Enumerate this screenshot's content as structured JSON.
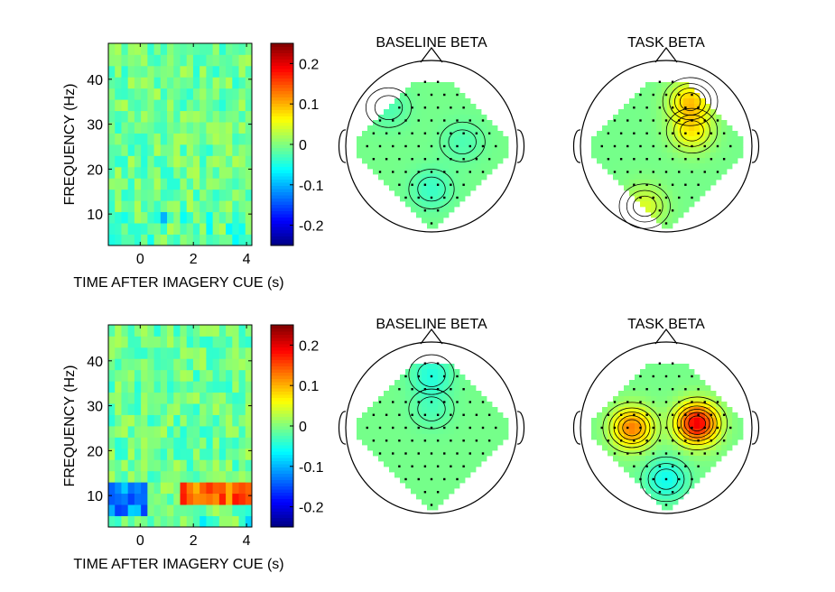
{
  "colors": {
    "background": "#ffffff",
    "axis": "#000000",
    "head_outline": "#000000"
  },
  "chart_data": [
    {
      "type": "heatmap",
      "panel": "top-spectrogram",
      "xlabel": "TIME AFTER IMAGERY CUE (s)",
      "ylabel": "FREQUENCY (Hz)",
      "xlim": [
        -1.2,
        4.2
      ],
      "ylim": [
        3,
        48
      ],
      "xticks": [
        0,
        2,
        4
      ],
      "yticks": [
        10,
        20,
        30,
        40
      ],
      "colorbar": {
        "colormap": "jet",
        "clim": [
          -0.25,
          0.25
        ],
        "ticks": [
          0.2,
          0.1,
          0,
          -0.1,
          -0.2
        ],
        "tick_labels": [
          "0.2",
          "0.1",
          "0",
          "-0.1",
          "-0.2"
        ]
      }
    },
    {
      "type": "heatmap",
      "panel": "top-baseline-topomap",
      "title": "BASELINE BETA",
      "colormap": "jet",
      "clim": [
        -0.25,
        0.25
      ],
      "peaks": [
        {
          "position": "midline-posterior",
          "value": -0.03
        },
        {
          "position": "right-central",
          "value": -0.02
        },
        {
          "position": "left-frontal",
          "value": -0.02
        }
      ]
    },
    {
      "type": "heatmap",
      "panel": "top-task-topomap",
      "title": "TASK BETA",
      "colormap": "jet",
      "clim": [
        -0.25,
        0.25
      ],
      "peaks": [
        {
          "position": "right-frontal",
          "value": 0.09
        },
        {
          "position": "right-fronto-central",
          "value": 0.07
        },
        {
          "position": "left-occipital",
          "value": 0.05
        }
      ]
    },
    {
      "type": "heatmap",
      "panel": "bottom-spectrogram",
      "xlabel": "TIME AFTER IMAGERY CUE (s)",
      "ylabel": "FREQUENCY (Hz)",
      "xlim": [
        -1.2,
        4.2
      ],
      "ylim": [
        3,
        48
      ],
      "xticks": [
        0,
        2,
        4
      ],
      "yticks": [
        10,
        20,
        30,
        40
      ],
      "colorbar": {
        "colormap": "jet",
        "clim": [
          -0.25,
          0.25
        ],
        "ticks": [
          0.2,
          0.1,
          0,
          -0.1,
          -0.2
        ],
        "tick_labels": [
          "0.2",
          "0.1",
          "0",
          "-0.1",
          "-0.2"
        ]
      },
      "features": [
        {
          "description": "alpha band increase",
          "time_range": [
            1.5,
            4.2
          ],
          "freq_range": [
            9,
            12
          ],
          "value": 0.14
        },
        {
          "description": "early alpha decrease",
          "time_range": [
            -1.2,
            0.2
          ],
          "freq_range": [
            5,
            13
          ],
          "value": -0.12
        }
      ]
    },
    {
      "type": "heatmap",
      "panel": "bottom-baseline-topomap",
      "title": "BASELINE BETA",
      "colormap": "jet",
      "clim": [
        -0.25,
        0.25
      ],
      "peaks": [
        {
          "position": "frontal",
          "value": -0.04
        },
        {
          "position": "midline-central",
          "value": -0.02
        }
      ]
    },
    {
      "type": "heatmap",
      "panel": "bottom-task-topomap",
      "title": "TASK BETA",
      "colormap": "jet",
      "clim": [
        -0.25,
        0.25
      ],
      "peaks": [
        {
          "position": "right-central",
          "value": 0.2
        },
        {
          "position": "left-central",
          "value": 0.13
        },
        {
          "position": "occipital",
          "value": -0.05
        }
      ]
    }
  ]
}
